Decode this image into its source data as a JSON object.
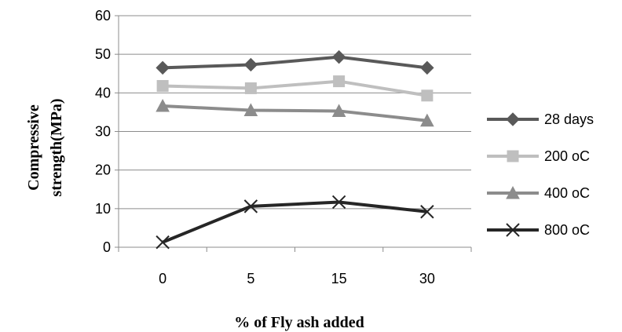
{
  "chart_data": {
    "type": "line",
    "xlabel": "% of Fly ash added",
    "ylabel_line1": "Compressive",
    "ylabel_line2": "strength(MPa)",
    "categories": [
      "0",
      "5",
      "15",
      "30"
    ],
    "ylim": [
      0,
      60
    ],
    "yticks": [
      "0",
      "10",
      "20",
      "30",
      "40",
      "50",
      "60"
    ],
    "grid": "horizontal",
    "legend_position": "right",
    "series": [
      {
        "name": "28 days",
        "values": [
          46.5,
          47.3,
          49.3,
          46.5
        ],
        "color": "#595959",
        "marker": "diamond"
      },
      {
        "name": "200 oC",
        "values": [
          41.8,
          41.2,
          43.0,
          39.3
        ],
        "color": "#bfbfbf",
        "marker": "square"
      },
      {
        "name": "400 oC",
        "values": [
          36.6,
          35.5,
          35.3,
          32.8
        ],
        "color": "#8c8c8c",
        "marker": "triangle"
      },
      {
        "name": "800 oC",
        "values": [
          1.3,
          10.6,
          11.7,
          9.2
        ],
        "color": "#262626",
        "marker": "x"
      }
    ]
  }
}
